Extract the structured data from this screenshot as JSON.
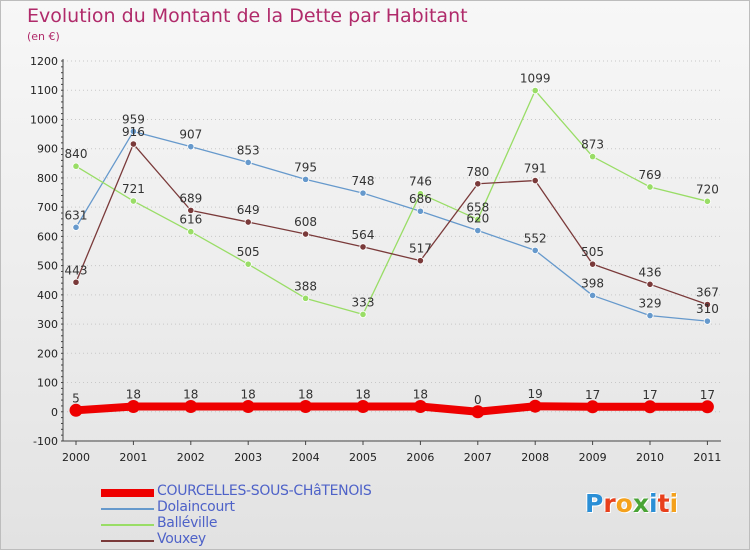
{
  "header": {
    "title": "Evolution du Montant de la Dette par Habitant",
    "subtitle": "(en €)"
  },
  "brand": {
    "text": "Proxiti",
    "letter_colors": [
      "#2b8fd6",
      "#e8401c",
      "#f4a11c",
      "#4aa436",
      "#2b8fd6",
      "#e8401c",
      "#f4a11c"
    ]
  },
  "chart_data": {
    "type": "line",
    "title": "Evolution du Montant de la Dette par Habitant",
    "subtitle": "(en €)",
    "xlabel": "",
    "ylabel": "",
    "x": [
      "2000",
      "2001",
      "2002",
      "2003",
      "2004",
      "2005",
      "2006",
      "2007",
      "2008",
      "2009",
      "2010",
      "2011"
    ],
    "ylim": [
      -100,
      1200
    ],
    "yticks": [
      -100,
      0,
      100,
      200,
      300,
      400,
      500,
      600,
      700,
      800,
      900,
      1000,
      1100,
      1200
    ],
    "grid": "dotted horizontal",
    "legend_position": "bottom-left",
    "series": [
      {
        "name": "COURCELLES-SOUS-CHâTENOIS",
        "color": "#ee0000",
        "line_width": 8,
        "values": [
          5,
          18,
          18,
          18,
          18,
          18,
          18,
          0,
          19,
          17,
          17,
          17
        ]
      },
      {
        "name": "Dolaincourt",
        "color": "#6699cc",
        "line_width": 1.3,
        "values": [
          631,
          959,
          907,
          853,
          795,
          748,
          686,
          620,
          552,
          398,
          329,
          310
        ]
      },
      {
        "name": "Balléville",
        "color": "#99dd66",
        "line_width": 1.3,
        "values": [
          840,
          721,
          616,
          505,
          388,
          333,
          746,
          658,
          1099,
          873,
          769,
          720
        ]
      },
      {
        "name": "Vouxey",
        "color": "#7a3a3a",
        "line_width": 1.3,
        "values": [
          443,
          916,
          689,
          649,
          608,
          564,
          517,
          780,
          791,
          505,
          436,
          367
        ]
      }
    ]
  }
}
